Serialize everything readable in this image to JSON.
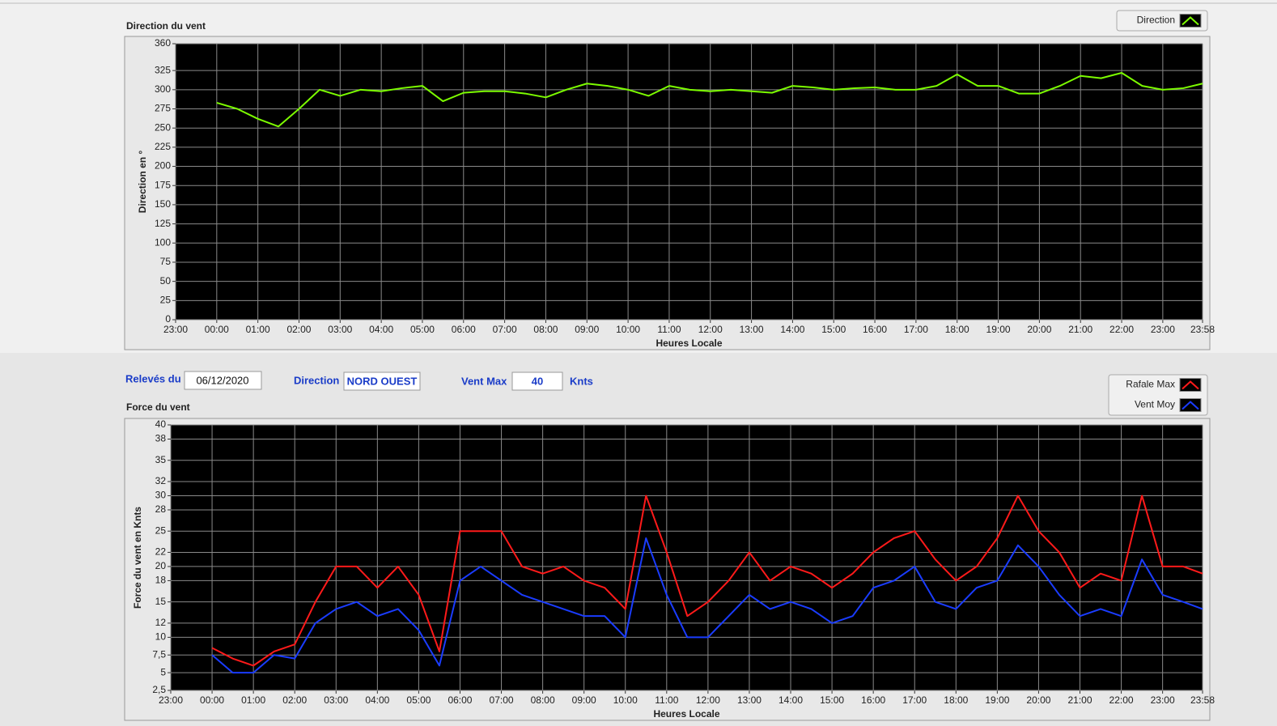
{
  "chart_data": [
    {
      "type": "line",
      "title": "Direction du vent",
      "xlabel": "Heures Locale",
      "ylabel": "Direction en °",
      "grid": true,
      "legend": "top-right",
      "x": [
        60,
        90,
        120,
        150,
        180,
        210,
        240,
        270,
        300,
        330,
        360,
        390,
        420,
        450,
        480,
        510,
        540,
        570,
        600,
        630,
        660,
        690,
        720,
        750,
        780,
        810,
        840,
        870,
        900,
        930,
        960,
        990,
        1020,
        1050,
        1080,
        1110,
        1140,
        1170,
        1200,
        1230,
        1260,
        1290,
        1320,
        1350,
        1380,
        1410,
        1440,
        1470,
        1498
      ],
      "xlim": [
        0,
        1498
      ],
      "xticks": [
        {
          "value": 0,
          "label": "23:00"
        },
        {
          "value": 60,
          "label": "00:00"
        },
        {
          "value": 120,
          "label": "01:00"
        },
        {
          "value": 180,
          "label": "02:00"
        },
        {
          "value": 240,
          "label": "03:00"
        },
        {
          "value": 300,
          "label": "04:00"
        },
        {
          "value": 360,
          "label": "05:00"
        },
        {
          "value": 420,
          "label": "06:00"
        },
        {
          "value": 480,
          "label": "07:00"
        },
        {
          "value": 540,
          "label": "08:00"
        },
        {
          "value": 600,
          "label": "09:00"
        },
        {
          "value": 660,
          "label": "10:00"
        },
        {
          "value": 720,
          "label": "11:00"
        },
        {
          "value": 780,
          "label": "12:00"
        },
        {
          "value": 840,
          "label": "13:00"
        },
        {
          "value": 900,
          "label": "14:00"
        },
        {
          "value": 960,
          "label": "15:00"
        },
        {
          "value": 1020,
          "label": "16:00"
        },
        {
          "value": 1080,
          "label": "17:00"
        },
        {
          "value": 1140,
          "label": "18:00"
        },
        {
          "value": 1200,
          "label": "19:00"
        },
        {
          "value": 1260,
          "label": "20:00"
        },
        {
          "value": 1320,
          "label": "21:00"
        },
        {
          "value": 1380,
          "label": "22:00"
        },
        {
          "value": 1440,
          "label": "23:00"
        },
        {
          "value": 1498,
          "label": "23:58"
        }
      ],
      "ylim": [
        0,
        360
      ],
      "yticks": [
        0,
        25,
        50,
        75,
        100,
        125,
        150,
        175,
        200,
        225,
        250,
        275,
        300,
        325,
        360
      ],
      "series": [
        {
          "name": "Direction",
          "color": "#7cfc00",
          "values": [
            283,
            275,
            262,
            252,
            275,
            300,
            292,
            300,
            298,
            302,
            305,
            285,
            296,
            298,
            298,
            295,
            290,
            300,
            308,
            305,
            300,
            292,
            305,
            300,
            298,
            300,
            298,
            296,
            305,
            303,
            300,
            302,
            303,
            300,
            300,
            305,
            320,
            305,
            305,
            295,
            295,
            305,
            318,
            315,
            322,
            305,
            300,
            302,
            308
          ]
        }
      ]
    },
    {
      "type": "line",
      "title": "Force du vent",
      "xlabel": "Heures Locale",
      "ylabel": "Force du vent en Knts",
      "grid": true,
      "legend": "top-right",
      "x": [
        60,
        90,
        120,
        150,
        180,
        210,
        240,
        270,
        300,
        330,
        360,
        390,
        420,
        450,
        480,
        510,
        540,
        570,
        600,
        630,
        660,
        690,
        720,
        750,
        780,
        810,
        840,
        870,
        900,
        930,
        960,
        990,
        1020,
        1050,
        1080,
        1110,
        1140,
        1170,
        1200,
        1230,
        1260,
        1290,
        1320,
        1350,
        1380,
        1410,
        1440,
        1470,
        1498
      ],
      "xlim": [
        0,
        1498
      ],
      "xticks": [
        {
          "value": 0,
          "label": "23:00"
        },
        {
          "value": 60,
          "label": "00:00"
        },
        {
          "value": 120,
          "label": "01:00"
        },
        {
          "value": 180,
          "label": "02:00"
        },
        {
          "value": 240,
          "label": "03:00"
        },
        {
          "value": 300,
          "label": "04:00"
        },
        {
          "value": 360,
          "label": "05:00"
        },
        {
          "value": 420,
          "label": "06:00"
        },
        {
          "value": 480,
          "label": "07:00"
        },
        {
          "value": 540,
          "label": "08:00"
        },
        {
          "value": 600,
          "label": "09:00"
        },
        {
          "value": 660,
          "label": "10:00"
        },
        {
          "value": 720,
          "label": "11:00"
        },
        {
          "value": 780,
          "label": "12:00"
        },
        {
          "value": 840,
          "label": "13:00"
        },
        {
          "value": 900,
          "label": "14:00"
        },
        {
          "value": 960,
          "label": "15:00"
        },
        {
          "value": 1020,
          "label": "16:00"
        },
        {
          "value": 1080,
          "label": "17:00"
        },
        {
          "value": 1140,
          "label": "18:00"
        },
        {
          "value": 1200,
          "label": "19:00"
        },
        {
          "value": 1260,
          "label": "20:00"
        },
        {
          "value": 1320,
          "label": "21:00"
        },
        {
          "value": 1380,
          "label": "22:00"
        },
        {
          "value": 1440,
          "label": "23:00"
        },
        {
          "value": 1498,
          "label": "23:58"
        }
      ],
      "ylim": [
        2.5,
        40
      ],
      "yticks": [
        {
          "value": 2.5,
          "label": "2,5"
        },
        5,
        {
          "value": 7.5,
          "label": "7,5"
        },
        10,
        12,
        15,
        18,
        20,
        22,
        25,
        28,
        30,
        32,
        35,
        38,
        40
      ],
      "series": [
        {
          "name": "Rafale Max",
          "color": "#ff1a1a",
          "values": [
            8.5,
            7,
            6,
            8,
            9,
            15,
            20,
            20,
            17,
            20,
            16,
            8,
            25,
            25,
            25,
            20,
            19,
            20,
            18,
            17,
            14,
            30,
            22,
            13,
            15,
            18,
            22,
            18,
            20,
            19,
            17,
            19,
            22,
            24,
            25,
            21,
            18,
            20,
            24,
            30,
            25,
            22,
            17,
            19,
            18,
            30,
            20,
            20,
            19
          ]
        },
        {
          "name": "Vent Moy",
          "color": "#1a3cff",
          "values": [
            7.5,
            5,
            5,
            7.5,
            7,
            12,
            14,
            15,
            13,
            14,
            11,
            6,
            18,
            20,
            18,
            16,
            15,
            14,
            13,
            13,
            10,
            24,
            16,
            10,
            10,
            13,
            16,
            14,
            15,
            14,
            12,
            13,
            17,
            18,
            20,
            15,
            14,
            17,
            18,
            23,
            20,
            16,
            13,
            14,
            13,
            21,
            16,
            15,
            14
          ]
        }
      ]
    }
  ],
  "controls": {
    "date_label": "Relevés du",
    "date": "06/12/2020",
    "direction_label": "Direction",
    "direction": "NORD OUEST",
    "vent_max_label": "Vent Max",
    "vent_max": 40,
    "unit": "Knts"
  }
}
